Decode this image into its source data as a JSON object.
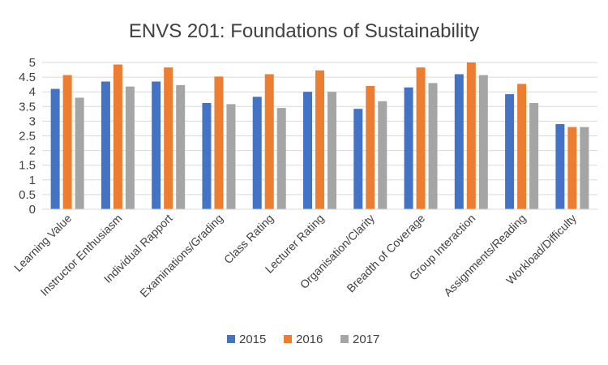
{
  "chart_data": {
    "type": "bar",
    "title": "ENVS 201: Foundations of Sustainability",
    "xlabel": "",
    "ylabel": "",
    "ylim": [
      0,
      5
    ],
    "yticks": [
      "0",
      "0.5",
      "1",
      "1.5",
      "2",
      "2.5",
      "3",
      "3.5",
      "4",
      "4.5",
      "5"
    ],
    "grid": true,
    "legend_position": "bottom",
    "categories": [
      "Learning Value",
      "Instructor Enthusiasm",
      "Individual Rapport",
      "Examinations/Grading",
      "Class Rating",
      "Lecturer Rating",
      "Organisation/Clarity",
      "Breadth of Coverage",
      "Group Interaction",
      "Assignments/Reading",
      "Workload/Difficulty"
    ],
    "series": [
      {
        "name": "2015",
        "color": "#4472c4",
        "values": [
          4.1,
          4.35,
          4.35,
          3.62,
          3.83,
          4.0,
          3.42,
          4.15,
          4.6,
          3.92,
          2.9
        ]
      },
      {
        "name": "2016",
        "color": "#ed7d31",
        "values": [
          4.57,
          4.93,
          4.83,
          4.52,
          4.6,
          4.73,
          4.2,
          4.83,
          5.0,
          4.27,
          2.8
        ]
      },
      {
        "name": "2017",
        "color": "#a5a5a5",
        "values": [
          3.8,
          4.18,
          4.23,
          3.58,
          3.45,
          4.0,
          3.68,
          4.3,
          4.57,
          3.62,
          2.8
        ]
      }
    ]
  }
}
